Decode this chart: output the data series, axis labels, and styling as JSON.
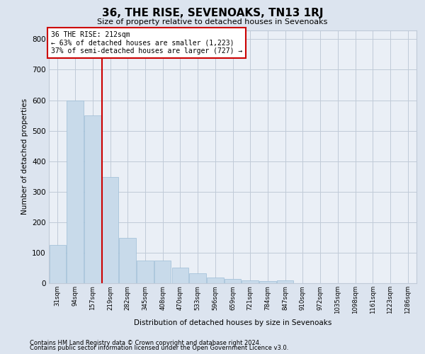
{
  "title": "36, THE RISE, SEVENOAKS, TN13 1RJ",
  "subtitle": "Size of property relative to detached houses in Sevenoaks",
  "xlabel": "Distribution of detached houses by size in Sevenoaks",
  "ylabel": "Number of detached properties",
  "footnote1": "Contains HM Land Registry data © Crown copyright and database right 2024.",
  "footnote2": "Contains public sector information licensed under the Open Government Licence v3.0.",
  "categories": [
    "31sqm",
    "94sqm",
    "157sqm",
    "219sqm",
    "282sqm",
    "345sqm",
    "408sqm",
    "470sqm",
    "533sqm",
    "596sqm",
    "659sqm",
    "721sqm",
    "784sqm",
    "847sqm",
    "910sqm",
    "972sqm",
    "1035sqm",
    "1098sqm",
    "1161sqm",
    "1223sqm",
    "1286sqm"
  ],
  "values": [
    125,
    600,
    550,
    348,
    148,
    75,
    75,
    52,
    32,
    18,
    14,
    10,
    7,
    10,
    0,
    0,
    0,
    0,
    0,
    0,
    0
  ],
  "bar_color": "#c8daea",
  "bar_edge_color": "#9dbdd6",
  "vline_x_pos": 2.525,
  "vline_color": "#cc0000",
  "annotation_line1": "36 THE RISE: 212sqm",
  "annotation_line2": "← 63% of detached houses are smaller (1,223)",
  "annotation_line3": "37% of semi-detached houses are larger (727) →",
  "annotation_box_facecolor": "white",
  "annotation_box_edgecolor": "#cc0000",
  "ylim": [
    0,
    830
  ],
  "yticks": [
    0,
    100,
    200,
    300,
    400,
    500,
    600,
    700,
    800
  ],
  "grid_color": "#c0cad8",
  "background_color": "#dce4ef",
  "plot_background_color": "#eaeff6"
}
